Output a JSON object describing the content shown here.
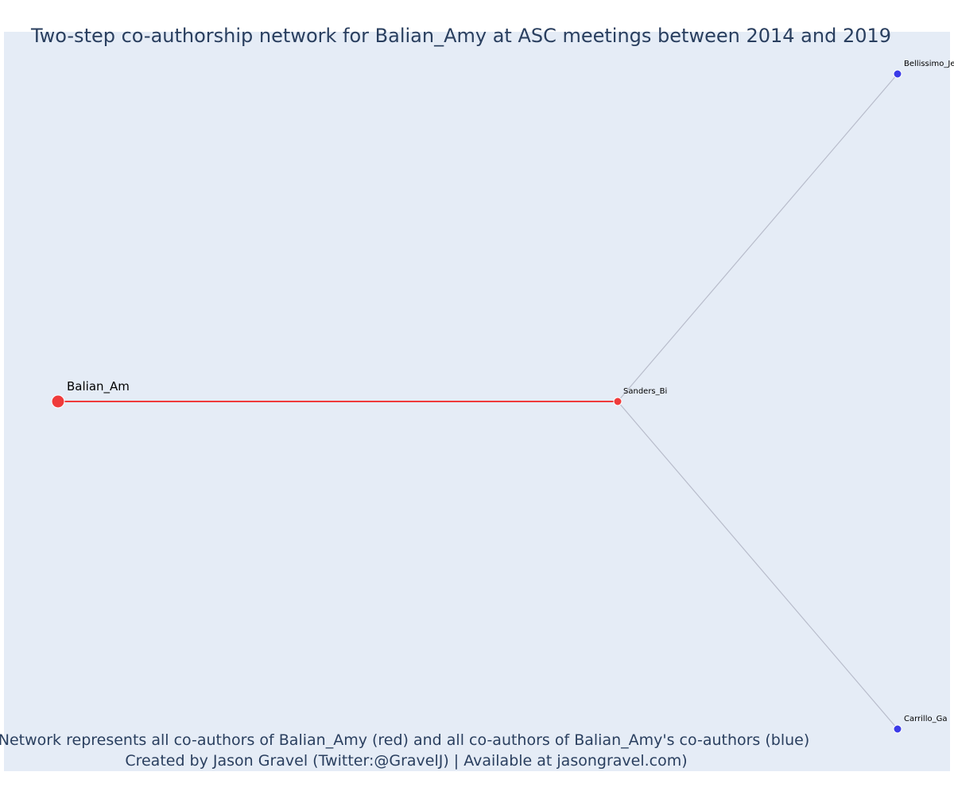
{
  "title": "Two-step co-authorship network for Balian_Amy at ASC meetings between 2014 and 2019",
  "caption": {
    "line1": "Network represents all co-authors of Balian_Amy (red) and all co-authors of Balian_Amy's co-authors (blue)",
    "line2": "Created by Jason Gravel (Twitter:@GravelJ) | Available at jasongravel.com)"
  },
  "colors": {
    "plot_background": "#e5ecf6",
    "focal": "#ef3b3b",
    "first_step": "#ef3b3b",
    "second_step": "#3b3be8",
    "focal_edge": "#ef3b3b",
    "other_edge": "#b8bccb"
  },
  "chart_data": {
    "type": "network",
    "title": "Two-step co-authorship network for Balian_Amy at ASC meetings between 2014 and 2019",
    "nodes": [
      {
        "id": "Balian_Am",
        "label": "Balian_Am",
        "group": "focal",
        "x": 0.0,
        "y": 0.5
      },
      {
        "id": "Sanders_Bi",
        "label": "Sanders_Bi",
        "group": "coauthor",
        "x": 0.62,
        "y": 0.5
      },
      {
        "id": "Bellissimo_Je",
        "label": "Bellissimo_Je",
        "group": "second_step",
        "x": 0.93,
        "y": 1.0
      },
      {
        "id": "Carrillo_Ga",
        "label": "Carrillo_Ga",
        "group": "second_step",
        "x": 0.93,
        "y": 0.0
      }
    ],
    "edges": [
      {
        "source": "Balian_Am",
        "target": "Sanders_Bi",
        "type": "focal"
      },
      {
        "source": "Sanders_Bi",
        "target": "Bellissimo_Je",
        "type": "other"
      },
      {
        "source": "Sanders_Bi",
        "target": "Carrillo_Ga",
        "type": "other"
      }
    ]
  }
}
